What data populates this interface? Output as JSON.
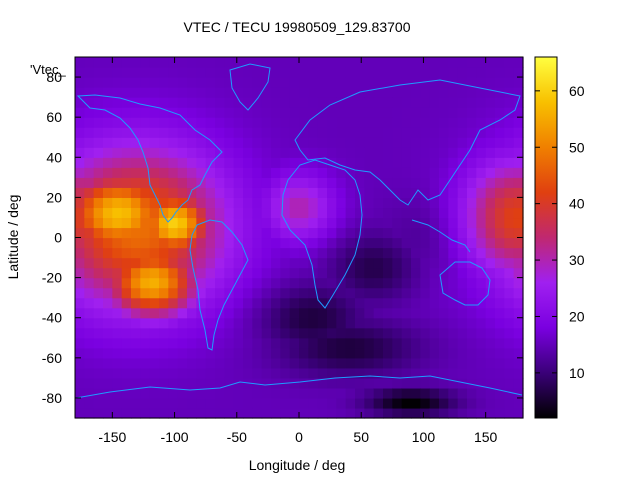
{
  "chart_data": {
    "type": "heatmap",
    "title": "VTEC / TECU 19980509_129.83700",
    "xlabel": "Longitude / deg",
    "ylabel": "Latitude / deg",
    "key_label": "'Vtec_",
    "xlim": [
      -180,
      180
    ],
    "ylim": [
      -90,
      90
    ],
    "xticks": [
      -150,
      -100,
      -50,
      0,
      50,
      100,
      150
    ],
    "yticks": [
      -80,
      -60,
      -40,
      -20,
      0,
      20,
      40,
      60,
      80
    ],
    "colorbar": {
      "range": [
        2,
        66
      ],
      "ticks": [
        10,
        20,
        30,
        40,
        50,
        60
      ],
      "palette": [
        "#000000",
        "#3a0078",
        "#7a00e0",
        "#a020f0",
        "#c02870",
        "#e04010",
        "#f08000",
        "#f8c000",
        "#ffff40"
      ]
    },
    "grid": false,
    "vtec_features": [
      {
        "lon": -145,
        "lat": 12,
        "value": 58,
        "spread_lon": 30,
        "spread_lat": 14
      },
      {
        "lon": -100,
        "lat": 7,
        "value": 60,
        "spread_lon": 20,
        "spread_lat": 11
      },
      {
        "lon": -118,
        "lat": -22,
        "value": 56,
        "spread_lon": 25,
        "spread_lat": 12
      },
      {
        "lon": -130,
        "lat": 5,
        "value": 48,
        "spread_lon": 50,
        "spread_lat": 28
      },
      {
        "lon": 175,
        "lat": 10,
        "value": 42,
        "spread_lon": 30,
        "spread_lat": 20
      },
      {
        "lon": 0,
        "lat": 15,
        "value": 30,
        "spread_lon": 20,
        "spread_lat": 12
      },
      {
        "lon": 90,
        "lat": -82,
        "value": 2,
        "spread_lon": 25,
        "spread_lat": 5
      },
      {
        "lon": 10,
        "lat": -40,
        "value": 6,
        "spread_lon": 30,
        "spread_lat": 12
      },
      {
        "lon": 60,
        "lat": -15,
        "value": 7,
        "spread_lon": 25,
        "spread_lat": 12
      },
      {
        "lon": 100,
        "lat": 0,
        "value": 12,
        "spread_lon": 25,
        "spread_lat": 15
      },
      {
        "lon": 40,
        "lat": -55,
        "value": 6,
        "spread_lon": 40,
        "spread_lat": 10
      }
    ],
    "vtec_background": 15
  }
}
